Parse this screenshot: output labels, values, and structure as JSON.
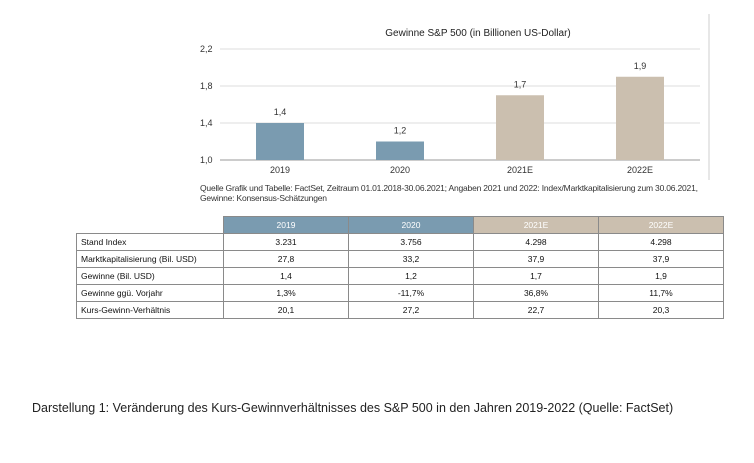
{
  "chart_data": {
    "type": "bar",
    "title": "Gewinne S&P 500 (in Billionen US-Dollar)",
    "categories": [
      "2019",
      "2020",
      "2021E",
      "2022E"
    ],
    "values": [
      1.4,
      1.2,
      1.7,
      1.9
    ],
    "value_labels": [
      "1,4",
      "1,2",
      "1,7",
      "1,9"
    ],
    "estimate": [
      false,
      false,
      true,
      true
    ],
    "ylim": [
      1.0,
      2.2
    ],
    "yticks": [
      1.0,
      1.4,
      1.8,
      2.2
    ],
    "ytick_labels": [
      "1,0",
      "1,4",
      "1,8",
      "2,2"
    ],
    "xlabel": "",
    "ylabel": "",
    "colors": {
      "actual": "#7a9bb0",
      "estimate": "#cbbfaf"
    }
  },
  "source": "Quelle Grafik und Tabelle: FactSet, Zeitraum 01.01.2018-30.06.2021; Angaben 2021 und 2022: Index/Marktkapitalisierung zum 30.06.2021, Gewinne: Konsensus-Schätzungen",
  "table": {
    "headers": [
      "2019",
      "2020",
      "2021E",
      "2022E"
    ],
    "rows": [
      {
        "label": "Stand Index",
        "values": [
          "3.231",
          "3.756",
          "4.298",
          "4.298"
        ]
      },
      {
        "label": "Marktkapitalisierung (Bil. USD)",
        "values": [
          "27,8",
          "33,2",
          "37,9",
          "37,9"
        ]
      },
      {
        "label": "Gewinne (Bil. USD)",
        "values": [
          "1,4",
          "1,2",
          "1,7",
          "1,9"
        ]
      },
      {
        "label": "Gewinne ggü. Vorjahr",
        "values": [
          "1,3%",
          "-11,7%",
          "36,8%",
          "11,7%"
        ]
      },
      {
        "label": "Kurs-Gewinn-Verhältnis",
        "values": [
          "20,1",
          "27,2",
          "22,7",
          "20,3"
        ]
      }
    ]
  },
  "caption": "Darstellung 1: Veränderung des Kurs-Gewinnverhältnisses des S&P 500 in den Jahren 2019-2022 (Quelle: FactSet)"
}
